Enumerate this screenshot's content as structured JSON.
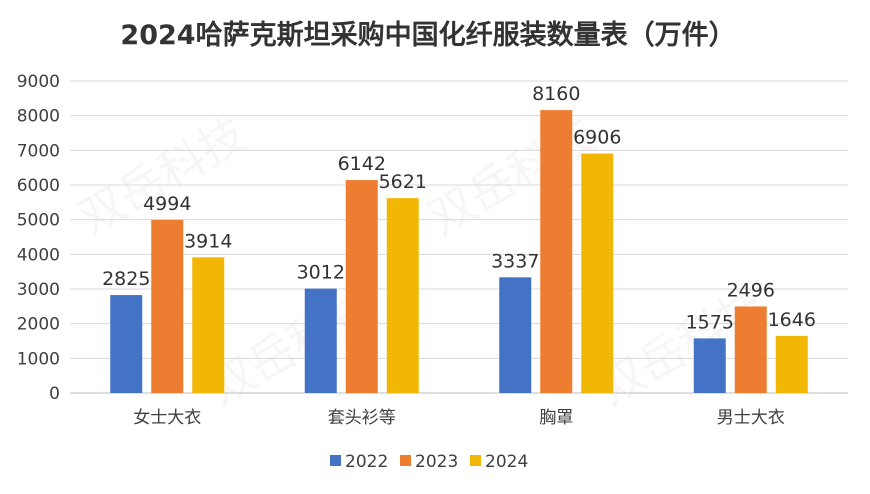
{
  "chart_data": {
    "type": "bar",
    "title": "2024哈萨克斯坦采购中国化纤服装数量表（万件）",
    "categories": [
      "女士大衣",
      "套头衫等",
      "胸罩",
      "男士大衣"
    ],
    "series": [
      {
        "name": "2022",
        "color": "#4472C4",
        "values": [
          2825,
          3012,
          3337,
          1575
        ]
      },
      {
        "name": "2023",
        "color": "#ED7D31",
        "values": [
          4994,
          6142,
          8160,
          2496
        ]
      },
      {
        "name": "2024",
        "color": "#F2B705",
        "values": [
          3914,
          5621,
          6906,
          1646
        ]
      }
    ],
    "ylim": [
      0,
      9000
    ],
    "yticks": [
      0,
      1000,
      2000,
      3000,
      4000,
      5000,
      6000,
      7000,
      8000,
      9000
    ],
    "grid": true,
    "legend_position": "bottom",
    "watermark": "双岳科技"
  }
}
